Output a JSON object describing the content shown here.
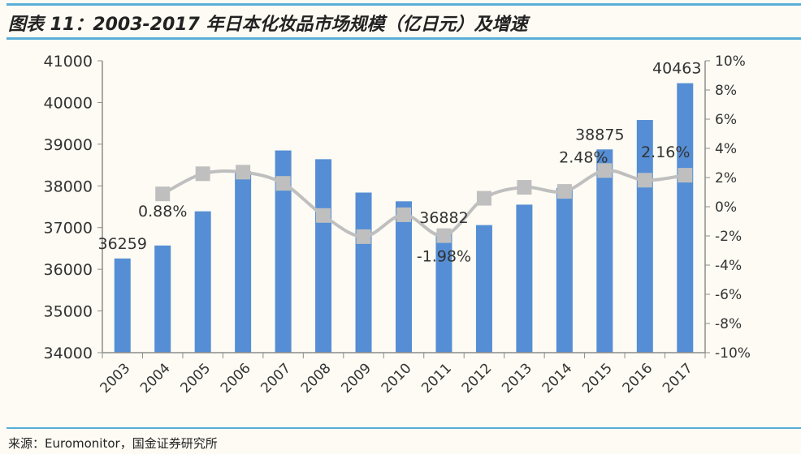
{
  "title": "图表 11：2003-2017 年日本化妆品市场规模（亿日元）及增速",
  "source": "来源：Euromonitor，国金证券研究所",
  "colors": {
    "bar": "#558ed5",
    "line": "#bfbfbf",
    "rule": "#5aaed8",
    "axis": "#8c8c8c"
  },
  "chart_data": {
    "type": "bar+line",
    "title": "",
    "categories": [
      "2003",
      "2004",
      "2005",
      "2006",
      "2007",
      "2008",
      "2009",
      "2010",
      "2011",
      "2012",
      "2013",
      "2014",
      "2015",
      "2016",
      "2017"
    ],
    "series": [
      {
        "type": "bar",
        "axis": "left",
        "values": [
          36259,
          36570,
          37390,
          38350,
          38850,
          38640,
          37840,
          37630,
          36882,
          37060,
          37550,
          37950,
          38875,
          39580,
          40463
        ]
      },
      {
        "type": "line",
        "axis": "right",
        "unit": "%",
        "values": [
          null,
          0.88,
          2.26,
          2.37,
          1.6,
          -0.6,
          -2.05,
          -0.55,
          -1.98,
          0.58,
          1.33,
          1.05,
          2.48,
          1.82,
          2.16
        ]
      }
    ],
    "data_labels": [
      {
        "series": 0,
        "index": 0,
        "text": "36259"
      },
      {
        "series": 0,
        "index": 8,
        "text": "36882"
      },
      {
        "series": 0,
        "index": 12,
        "text": "38875"
      },
      {
        "series": 0,
        "index": 14,
        "text": "40463"
      },
      {
        "series": 1,
        "index": 1,
        "text": "0.88%"
      },
      {
        "series": 1,
        "index": 8,
        "text": "-1.98%"
      },
      {
        "series": 1,
        "index": 12,
        "text": "2.48%"
      },
      {
        "series": 1,
        "index": 14,
        "text": "2.16%"
      }
    ],
    "y_left": {
      "range": [
        34000,
        41000
      ],
      "ticks": [
        "34000",
        "35000",
        "36000",
        "37000",
        "38000",
        "39000",
        "40000",
        "41000"
      ]
    },
    "y_right": {
      "range": [
        -10,
        10
      ],
      "ticks": [
        "-10%",
        "-8%",
        "-6%",
        "-4%",
        "-2%",
        "0%",
        "2%",
        "4%",
        "6%",
        "8%",
        "10%"
      ]
    },
    "grid": false,
    "legend": "none"
  }
}
